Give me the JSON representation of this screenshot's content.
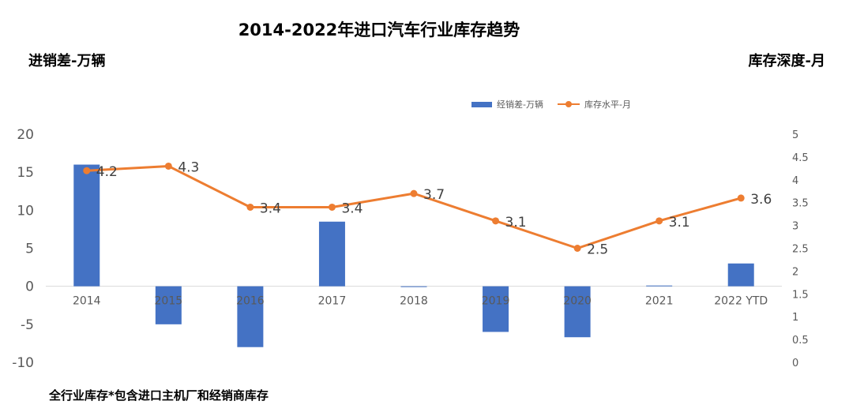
{
  "title": "2014-2022年进口汽车行业库存趋势",
  "left_axis_title": "进销差-万辆",
  "right_axis_title": "库存深度-月",
  "footnote": "全行业库存*包含进口主机厂和经销商库存",
  "legend": [
    {
      "label": "经销差-万辆",
      "color": "#4472C4",
      "kind": "bar"
    },
    {
      "label": "库存水平-月",
      "color": "#ED7D31",
      "kind": "line"
    }
  ],
  "chart_data": {
    "type": "bar+line",
    "categories": [
      "2014",
      "2015",
      "2016",
      "2017",
      "2018",
      "2019",
      "2020",
      "2021",
      "2022 YTD"
    ],
    "series": [
      {
        "name": "经销差-万辆",
        "type": "bar",
        "axis": "left",
        "color": "#4472C4",
        "values": [
          16,
          -5,
          -8,
          8.5,
          0,
          -6,
          -6.7,
          0.1,
          3
        ]
      },
      {
        "name": "库存水平-月",
        "type": "line",
        "axis": "right",
        "color": "#ED7D31",
        "values": [
          4.2,
          4.3,
          3.4,
          3.4,
          3.7,
          3.1,
          2.5,
          3.1,
          3.6
        ],
        "labels": [
          "4.2",
          "4.3",
          "3.4",
          "3.4",
          "3.7",
          "3.1",
          "2.5",
          "3.1",
          "3.6"
        ]
      }
    ],
    "y_left": {
      "range": [
        -10,
        20
      ],
      "ticks": [
        "-10",
        "-5",
        "0",
        "5",
        "10",
        "15",
        "20"
      ]
    },
    "y_right": {
      "range": [
        0,
        5
      ],
      "ticks": [
        "0",
        "0.5",
        "1",
        "1.5",
        "2",
        "2.5",
        "3",
        "3.5",
        "4",
        "4.5",
        "5"
      ]
    },
    "grid": false,
    "legend_position": "top-right"
  }
}
